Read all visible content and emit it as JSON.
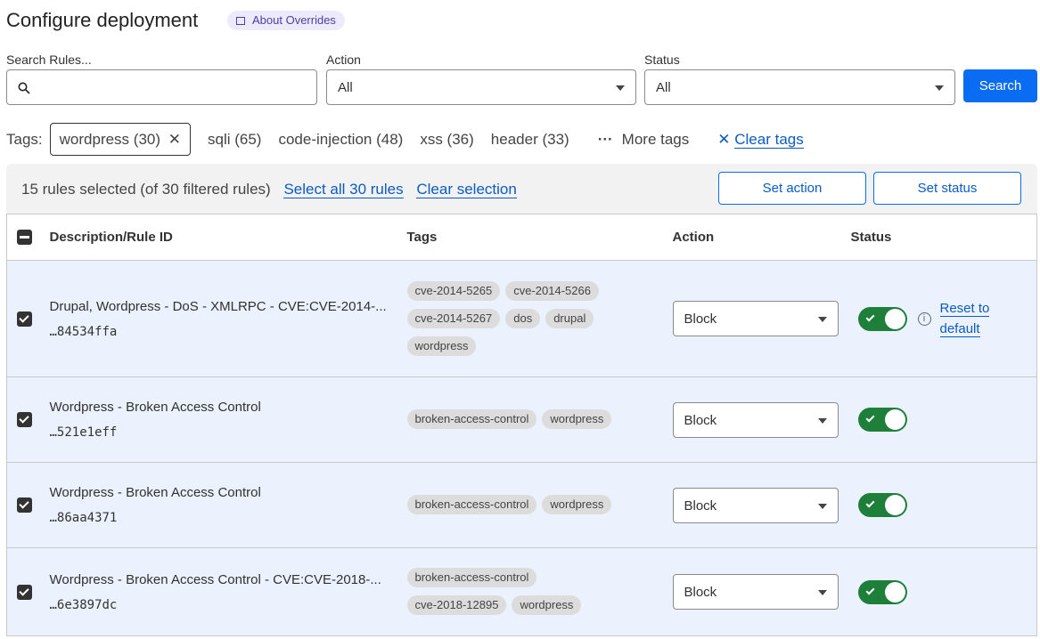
{
  "header": {
    "title": "Configure deployment",
    "about_label": "About Overrides"
  },
  "filters": {
    "search_label": "Search Rules...",
    "search_value": "",
    "action_label": "Action",
    "action_value": "All",
    "status_label": "Status",
    "status_value": "All",
    "search_button": "Search"
  },
  "tags": {
    "label": "Tags:",
    "active": "wordpress (30)",
    "items": [
      "sqli (65)",
      "code-injection (48)",
      "xss (36)",
      "header (33)"
    ],
    "more": "More tags",
    "clear": "Clear tags"
  },
  "selection": {
    "summary": "15 rules selected (of 30 filtered rules)",
    "select_all": "Select all 30 rules",
    "clear": "Clear selection",
    "set_action": "Set action",
    "set_status": "Set status"
  },
  "table": {
    "columns": [
      "Description/Rule ID",
      "Tags",
      "Action",
      "Status"
    ],
    "rows": [
      {
        "desc": "Drupal, Wordpress - DoS - XMLRPC - CVE:CVE-2014-...",
        "id": "…84534ffa",
        "tags": [
          "cve-2014-5265",
          "cve-2014-5266",
          "cve-2014-5267",
          "dos",
          "drupal",
          "wordpress"
        ],
        "action": "Block",
        "enabled": true,
        "checked": true,
        "reset": "Reset to default"
      },
      {
        "desc": "Wordpress - Broken Access Control",
        "id": "…521e1eff",
        "tags": [
          "broken-access-control",
          "wordpress"
        ],
        "action": "Block",
        "enabled": true,
        "checked": true
      },
      {
        "desc": "Wordpress - Broken Access Control",
        "id": "…86aa4371",
        "tags": [
          "broken-access-control",
          "wordpress"
        ],
        "action": "Block",
        "enabled": true,
        "checked": true
      },
      {
        "desc": "Wordpress - Broken Access Control - CVE:CVE-2018-...",
        "id": "…6e3897dc",
        "tags": [
          "broken-access-control",
          "cve-2018-12895",
          "wordpress"
        ],
        "action": "Block",
        "enabled": true,
        "checked": true
      }
    ]
  },
  "colors": {
    "primary": "#0a6cf2",
    "toggle_on": "#1d7f3a",
    "row_selected": "#ebf2fd"
  }
}
